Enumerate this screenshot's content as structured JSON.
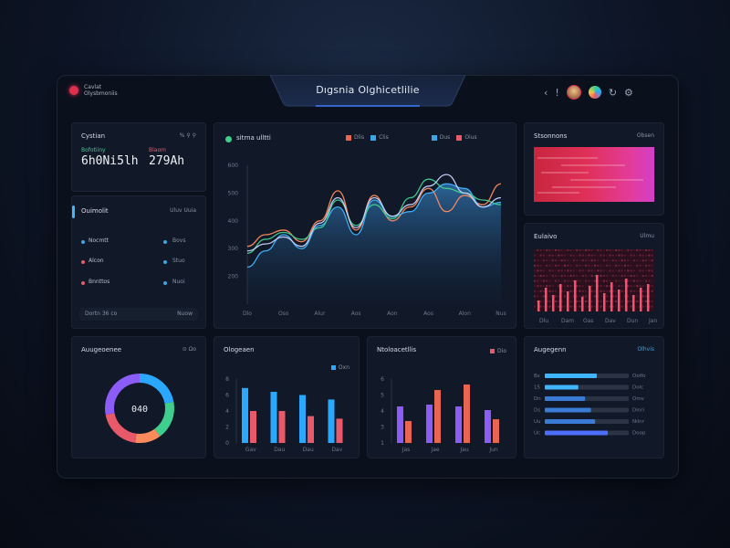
{
  "app": {
    "title": "Dıgsnia Olghicetlilie",
    "brand_line1": "Cavlat",
    "brand_line2": "Olysbmoniis"
  },
  "topbar": {
    "icons": [
      "back-icon",
      "info-icon",
      "avatar-1",
      "avatar-2",
      "refresh-icon",
      "settings-icon"
    ]
  },
  "kpi": {
    "title": "Cystian",
    "meta": "% ⚲ ⚲",
    "value1": "6h0Ni5lh",
    "label1": "Bofotiiny",
    "value2": "27‌9Ah",
    "label2": "Blaom"
  },
  "overview": {
    "title": "Ouimolit",
    "meta": "Uluv  Uuia",
    "rows": [
      {
        "label": "Nocmtt",
        "value": "Bovs",
        "color": "#3aa6e8"
      },
      {
        "label": "Alcon",
        "value": "Stuo",
        "color": "#e85a6a"
      },
      {
        "label": "Bnnttos",
        "value": "Nuoi",
        "color": "#e85a6a"
      }
    ],
    "footer": "Dortn 36 co",
    "footer2": "Nuow"
  },
  "main_chart": {
    "title": "sitrna ulltti",
    "legend": [
      {
        "label": "Dlis",
        "color": "#e8664f"
      },
      {
        "label": "Clis",
        "color": "#3aa6e8"
      },
      {
        "label": "Dus",
        "color": "#3aa6e8"
      },
      {
        "label": "Oius",
        "color": "#e85a6a"
      }
    ]
  },
  "chart_data": [
    {
      "type": "line",
      "title": "",
      "y_ticks": [
        "600",
        "500",
        "400",
        "300",
        "200",
        ""
      ],
      "x_ticks": [
        "Dlo",
        "Oso",
        "Alur",
        "Aos",
        "Aon",
        "Aos",
        "Alon",
        "Nus"
      ],
      "ylim": [
        0,
        600
      ],
      "x": [
        0,
        1,
        2,
        3,
        4,
        5,
        6,
        7,
        8,
        9,
        10,
        11,
        12,
        13,
        14
      ],
      "series": [
        {
          "color": "#ff8a5c",
          "values": [
            250,
            300,
            320,
            270,
            360,
            490,
            320,
            470,
            360,
            420,
            500,
            400,
            470,
            430,
            520
          ]
        },
        {
          "color": "#3fb4ff",
          "values": [
            160,
            230,
            300,
            240,
            340,
            420,
            300,
            450,
            380,
            400,
            480,
            520,
            500,
            420,
            440
          ]
        },
        {
          "color": "#3ecf8e",
          "values": [
            220,
            280,
            310,
            280,
            330,
            450,
            340,
            430,
            370,
            460,
            540,
            500,
            480,
            450,
            430
          ]
        },
        {
          "color": "#c7d4ff",
          "values": [
            230,
            260,
            290,
            250,
            350,
            460,
            330,
            460,
            380,
            430,
            510,
            560,
            480,
            420,
            460
          ]
        }
      ]
    },
    {
      "type": "pie",
      "title": "Auugeoenee",
      "center_label": "040",
      "slices": [
        {
          "value": 22,
          "color": "#2aa8ff"
        },
        {
          "value": 18,
          "color": "#3ecf8e"
        },
        {
          "value": 12,
          "color": "#ff8a5c"
        },
        {
          "value": 20,
          "color": "#e85a6a"
        },
        {
          "value": 28,
          "color": "#8b5cf6"
        }
      ]
    },
    {
      "type": "bar",
      "title": "Ologeaen",
      "y_ticks": [
        "8",
        "6",
        "4",
        "2",
        "0"
      ],
      "categories": [
        "Gav",
        "Dau",
        "Dau",
        "Dav"
      ],
      "ylim": [
        0,
        10
      ],
      "series": [
        {
          "color": "#2aa8ff",
          "values": [
            8.6,
            8.0,
            7.5,
            6.8
          ]
        },
        {
          "color": "#e85a6a",
          "values": [
            5.0,
            5.0,
            4.2,
            3.8
          ]
        }
      ]
    },
    {
      "type": "bar",
      "title": "Ntoloacetllis",
      "y_ticks": [
        "6",
        "5",
        "4",
        "3",
        "1"
      ],
      "categories": [
        "Jas",
        "Jae",
        "Jau",
        "Jun"
      ],
      "ylim": [
        0,
        7
      ],
      "series": [
        {
          "color": "#8b5cf6",
          "values": [
            4.0,
            4.2,
            4.0,
            3.6
          ]
        },
        {
          "color": "#e8664f",
          "values": [
            2.4,
            5.8,
            6.4,
            2.6
          ]
        }
      ]
    },
    {
      "type": "bar",
      "title": "Augegenn",
      "categories": [
        "Bs",
        "15",
        "Dn",
        "Ds",
        "Uu",
        "Uc"
      ],
      "value_labels": [
        "Oolfo",
        "Dolc",
        "Omv",
        "Dinri",
        "Nilnr",
        "Doop"
      ],
      "xlim": [
        0,
        100
      ],
      "values": [
        62,
        40,
        48,
        55,
        60,
        75
      ],
      "colors": [
        "#3fb4ff",
        "#3fb4ff",
        "#3a7bd5",
        "#3a7bd5",
        "#3a7bd5",
        "#4c6fff"
      ]
    }
  ],
  "side_top": {
    "title": "Stsonnons",
    "meta": "Obsen"
  },
  "side_mid": {
    "title": "Eulaivo",
    "meta": "Ulmu",
    "x_ticks": [
      "Dlu",
      "Dam",
      "Oas",
      "Dav",
      "Dun",
      "Jan"
    ]
  },
  "legends": {
    "bar1": [
      {
        "label": "Oxn",
        "color": "#2aa8ff"
      }
    ],
    "bar2": [
      {
        "label": "Dio",
        "color": "#e85a6a"
      }
    ],
    "hbar": [
      {
        "label": "Olhvis",
        "color": "#3aa6e8"
      }
    ],
    "pie_meta": "⊙ Ωo"
  }
}
